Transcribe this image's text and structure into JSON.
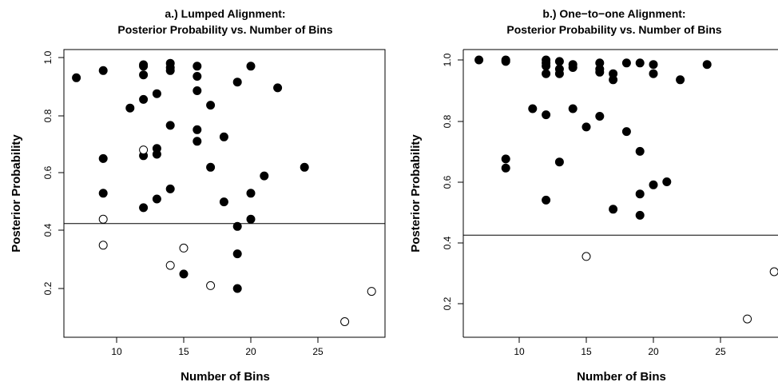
{
  "chart_data": [
    {
      "type": "scatter",
      "title": "a.) Lumped Alignment:",
      "subtitle": "Posterior Probability vs. Number of Bins",
      "xlabel": "Number of Bins",
      "ylabel": "Posterior Probability",
      "xlim": [
        6.5,
        29.5
      ],
      "ylim": [
        0.05,
        1.0
      ],
      "xticks": [
        "10",
        "15",
        "20",
        "25"
      ],
      "yticks": [
        "0.2",
        "0.4",
        "0.6",
        "0.8",
        "1.0"
      ],
      "hline": 0.425,
      "marker_styles": {
        "filled": "#000000",
        "open": "#ffffff"
      },
      "series": [
        {
          "marker": "filled",
          "points": [
            [
              7,
              0.93
            ],
            [
              9,
              0.955
            ],
            [
              9,
              0.65
            ],
            [
              9,
              0.53
            ],
            [
              11,
              0.825
            ],
            [
              12,
              0.975
            ],
            [
              12,
              0.97
            ],
            [
              12,
              0.94
            ],
            [
              12,
              0.855
            ],
            [
              12,
              0.66
            ],
            [
              12,
              0.48
            ],
            [
              13,
              0.875
            ],
            [
              13,
              0.685
            ],
            [
              13,
              0.665
            ],
            [
              13,
              0.51
            ],
            [
              14,
              0.98
            ],
            [
              14,
              0.965
            ],
            [
              14,
              0.955
            ],
            [
              14,
              0.765
            ],
            [
              14,
              0.545
            ],
            [
              15,
              0.25
            ],
            [
              16,
              0.97
            ],
            [
              16,
              0.935
            ],
            [
              16,
              0.885
            ],
            [
              16,
              0.75
            ],
            [
              16,
              0.71
            ],
            [
              17,
              0.835
            ],
            [
              17,
              0.62
            ],
            [
              18,
              0.725
            ],
            [
              18,
              0.5
            ],
            [
              19,
              0.915
            ],
            [
              19,
              0.415
            ],
            [
              19,
              0.32
            ],
            [
              19,
              0.2
            ],
            [
              20,
              0.97
            ],
            [
              20,
              0.53
            ],
            [
              20,
              0.44
            ],
            [
              21,
              0.59
            ],
            [
              22,
              0.895
            ],
            [
              24,
              0.62
            ]
          ]
        },
        {
          "marker": "open",
          "points": [
            [
              9,
              0.44
            ],
            [
              9,
              0.35
            ],
            [
              12,
              0.68
            ],
            [
              14,
              0.28
            ],
            [
              15,
              0.34
            ],
            [
              17,
              0.21
            ],
            [
              27,
              0.085
            ],
            [
              29,
              0.19
            ]
          ]
        }
      ]
    },
    {
      "type": "scatter",
      "title": "b.) One−to−one Alignment:",
      "subtitle": "Posterior Probability vs. Number of Bins",
      "xlabel": "Number of Bins",
      "ylabel": "Posterior Probability",
      "xlim": [
        6.5,
        29.0
      ],
      "ylim": [
        0.1,
        1.03
      ],
      "xticks": [
        "10",
        "15",
        "20",
        "25"
      ],
      "yticks": [
        "0.2",
        "0.4",
        "0.6",
        "0.8",
        "1.0"
      ],
      "hline": 0.425,
      "marker_styles": {
        "filled": "#000000",
        "open": "#ffffff"
      },
      "series": [
        {
          "marker": "filled",
          "points": [
            [
              7,
              1.0
            ],
            [
              9,
              1.0
            ],
            [
              9,
              0.995
            ],
            [
              9,
              0.675
            ],
            [
              9,
              0.645
            ],
            [
              11,
              0.84
            ],
            [
              12,
              1.0
            ],
            [
              12,
              0.99
            ],
            [
              12,
              0.98
            ],
            [
              12,
              0.955
            ],
            [
              12,
              0.82
            ],
            [
              12,
              0.54
            ],
            [
              13,
              0.995
            ],
            [
              13,
              0.97
            ],
            [
              13,
              0.955
            ],
            [
              13,
              0.665
            ],
            [
              14,
              0.985
            ],
            [
              14,
              0.975
            ],
            [
              14,
              0.84
            ],
            [
              15,
              0.78
            ],
            [
              16,
              0.99
            ],
            [
              16,
              0.97
            ],
            [
              16,
              0.96
            ],
            [
              16,
              0.815
            ],
            [
              17,
              0.955
            ],
            [
              17,
              0.935
            ],
            [
              17,
              0.51
            ],
            [
              18,
              0.99
            ],
            [
              18,
              0.765
            ],
            [
              19,
              0.99
            ],
            [
              19,
              0.7
            ],
            [
              19,
              0.56
            ],
            [
              19,
              0.49
            ],
            [
              20,
              0.985
            ],
            [
              20,
              0.955
            ],
            [
              20,
              0.59
            ],
            [
              21,
              0.6
            ],
            [
              22,
              0.935
            ],
            [
              24,
              0.985
            ]
          ]
        },
        {
          "marker": "open",
          "points": [
            [
              15,
              0.355
            ],
            [
              27,
              0.15
            ],
            [
              29,
              0.305
            ]
          ]
        }
      ]
    }
  ]
}
